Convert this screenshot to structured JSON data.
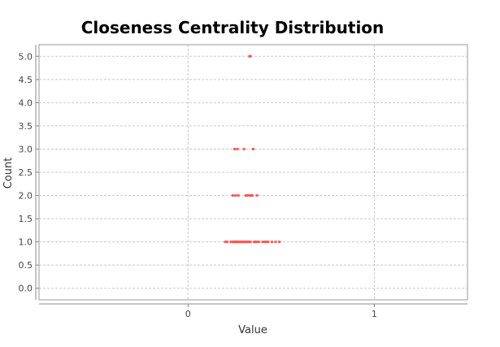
{
  "chart_data": {
    "type": "scatter",
    "title": "Closeness Centrality Distribution",
    "xlabel": "Value",
    "ylabel": "Count",
    "xlim": [
      -0.8,
      1.5
    ],
    "ylim": [
      -0.25,
      5.25
    ],
    "x_ticks": [
      0,
      1
    ],
    "x_tick_labels": [
      "0",
      "1"
    ],
    "y_ticks": [
      0.0,
      0.5,
      1.0,
      1.5,
      2.0,
      2.5,
      3.0,
      3.5,
      4.0,
      4.5,
      5.0
    ],
    "y_tick_labels": [
      "0.0",
      "0.5",
      "1.0",
      "1.5",
      "2.0",
      "2.5",
      "3.0",
      "3.5",
      "4.0",
      "4.5",
      "5.0"
    ],
    "grid": true,
    "legend": "none",
    "point_color": "#ff5555",
    "series": [
      {
        "x": [
          0.33,
          0.335,
          0.25,
          0.265,
          0.3,
          0.35,
          0.24,
          0.255,
          0.27,
          0.31,
          0.32,
          0.33,
          0.34,
          0.345,
          0.37,
          0.2,
          0.21,
          0.23,
          0.24,
          0.245,
          0.25,
          0.255,
          0.26,
          0.265,
          0.27,
          0.275,
          0.28,
          0.285,
          0.29,
          0.295,
          0.3,
          0.305,
          0.31,
          0.315,
          0.32,
          0.325,
          0.33,
          0.335,
          0.355,
          0.36,
          0.37,
          0.38,
          0.4,
          0.41,
          0.42,
          0.43,
          0.45,
          0.47,
          0.49
        ],
        "y": [
          5,
          5,
          3,
          3,
          3,
          3,
          2,
          2,
          2,
          2,
          2,
          2,
          2,
          2,
          2,
          1,
          1,
          1,
          1,
          1,
          1,
          1,
          1,
          1,
          1,
          1,
          1,
          1,
          1,
          1,
          1,
          1,
          1,
          1,
          1,
          1,
          1,
          1,
          1,
          1,
          1,
          1,
          1,
          1,
          1,
          1,
          1,
          1,
          1
        ]
      }
    ]
  }
}
